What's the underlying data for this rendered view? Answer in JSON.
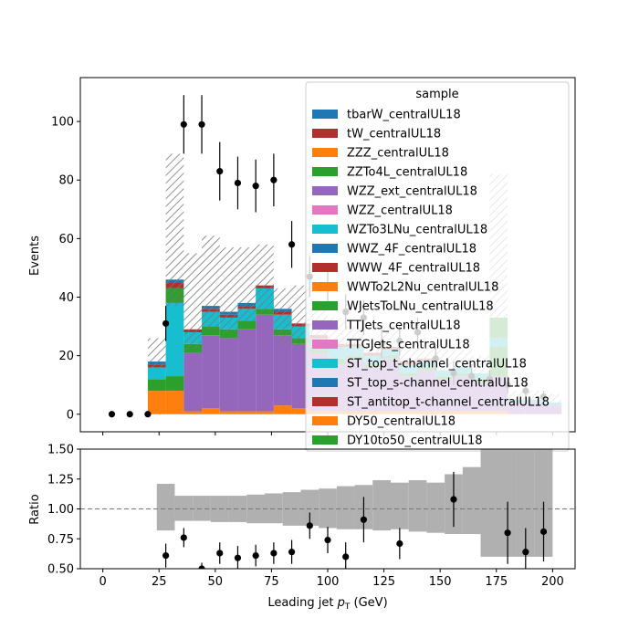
{
  "chart_data": [
    {
      "type": "bar",
      "stacked": true,
      "ylabel": "Events",
      "xlim": [
        -10,
        210
      ],
      "ylim": [
        -6,
        115
      ],
      "yticks": [
        0,
        20,
        40,
        60,
        80,
        100
      ],
      "bins": [
        [
          20,
          28
        ],
        [
          28,
          36
        ],
        [
          36,
          44
        ],
        [
          44,
          52
        ],
        [
          52,
          60
        ],
        [
          60,
          68
        ],
        [
          68,
          76
        ],
        [
          76,
          84
        ],
        [
          84,
          92
        ],
        [
          92,
          100
        ],
        [
          100,
          108
        ],
        [
          108,
          116
        ],
        [
          116,
          124
        ],
        [
          124,
          132
        ],
        [
          132,
          140
        ],
        [
          140,
          148
        ],
        [
          148,
          156
        ],
        [
          156,
          164
        ],
        [
          164,
          172
        ],
        [
          172,
          180
        ],
        [
          180,
          188
        ],
        [
          188,
          196
        ],
        [
          196,
          204
        ]
      ],
      "series": [
        {
          "name": "DY10to50_centralUL18",
          "color": "#2ca02c",
          "values": [
            0,
            0,
            0,
            0,
            0,
            0,
            0,
            0,
            0,
            0,
            0,
            0,
            0,
            0,
            0,
            0,
            0,
            0,
            0,
            0,
            0,
            0,
            0
          ]
        },
        {
          "name": "DY50_centralUL18",
          "color": "#ff7f0e",
          "values": [
            8,
            8,
            1,
            2,
            1,
            1,
            1,
            3,
            2,
            1,
            1,
            1,
            1,
            1,
            1,
            1,
            1,
            1,
            1,
            1,
            0,
            0,
            0
          ]
        },
        {
          "name": "ST_antitop_t-channel_centralUL18",
          "color": "#b1302e",
          "values": [
            0,
            0,
            0,
            0,
            0,
            0,
            0,
            0,
            0,
            0,
            0,
            0,
            0,
            0,
            0,
            0,
            0,
            0,
            0,
            0,
            0,
            0,
            0
          ]
        },
        {
          "name": "ST_top_s-channel_centralUL18",
          "color": "#1f77b4",
          "values": [
            0,
            0,
            0,
            0,
            0,
            0,
            0,
            0,
            0,
            0,
            0,
            0,
            0,
            0,
            0,
            0,
            0,
            0,
            0,
            0,
            0,
            0,
            0
          ]
        },
        {
          "name": "ST_top_t-channel_centralUL18",
          "color": "#17becf",
          "values": [
            0,
            0,
            0,
            0,
            0,
            0,
            0,
            0,
            0,
            0,
            0,
            0,
            0,
            0,
            0,
            0,
            0,
            0,
            0,
            0,
            0,
            0,
            0
          ]
        },
        {
          "name": "TTGJets_centralUL18",
          "color": "#e377c2",
          "values": [
            0,
            0,
            0,
            0,
            0,
            0,
            0,
            0,
            0,
            0,
            0,
            0,
            0,
            0,
            0,
            0,
            0,
            0,
            0,
            0,
            0,
            0,
            0
          ]
        },
        {
          "name": "TTJets_centralUL18",
          "color": "#9467bd",
          "values": [
            0,
            0,
            20,
            25,
            25,
            28,
            33,
            24,
            22,
            20,
            16,
            18,
            15,
            18,
            12,
            14,
            11,
            12,
            10,
            12,
            4,
            4,
            3
          ]
        },
        {
          "name": "WJetsToLNu_centralUL18",
          "color": "#2ca02c",
          "values": [
            4,
            5,
            3,
            3,
            3,
            3,
            2,
            2,
            2,
            2,
            2,
            1,
            1,
            1,
            1,
            1,
            1,
            1,
            1,
            10,
            0,
            0,
            0
          ]
        },
        {
          "name": "WWTo2L2Nu_centralUL18",
          "color": "#ff7f0e",
          "values": [
            0,
            0,
            0,
            0,
            0,
            0,
            0,
            0,
            0,
            0,
            0,
            0,
            0,
            0,
            0,
            0,
            0,
            0,
            0,
            0,
            0,
            0,
            0
          ]
        },
        {
          "name": "WWW_4F_centralUL18",
          "color": "#b1302e",
          "values": [
            0,
            0,
            0,
            0,
            0,
            0,
            0,
            0,
            0,
            0,
            0,
            0,
            0,
            0,
            0,
            0,
            0,
            0,
            0,
            0,
            0,
            0,
            0
          ]
        },
        {
          "name": "WWZ_4F_centralUL18",
          "color": "#1f77b4",
          "values": [
            0,
            0,
            0,
            0,
            0,
            0,
            0,
            0,
            0,
            0,
            0,
            0,
            0,
            0,
            0,
            0,
            0,
            0,
            0,
            0,
            0,
            0,
            0
          ]
        },
        {
          "name": "WZTo3LNu_centralUL18",
          "color": "#17becf",
          "values": [
            4,
            25,
            4,
            5,
            4,
            4,
            7,
            5,
            4,
            3,
            4,
            3,
            3,
            2,
            3,
            2,
            2,
            2,
            2,
            3,
            1,
            1,
            1
          ]
        },
        {
          "name": "WZZ_centralUL18",
          "color": "#e377c2",
          "values": [
            0,
            0,
            0,
            0,
            0,
            0,
            0,
            0,
            0,
            0,
            0,
            0,
            0,
            0,
            0,
            0,
            0,
            0,
            0,
            0,
            0,
            0,
            0
          ]
        },
        {
          "name": "WZZ_ext_centralUL18",
          "color": "#9467bd",
          "values": [
            0,
            0,
            0,
            0,
            0,
            0,
            0,
            0,
            0,
            0,
            0,
            0,
            0,
            0,
            0,
            0,
            0,
            0,
            0,
            0,
            0,
            0,
            0
          ]
        },
        {
          "name": "ZZTo4L_centralUL18",
          "color": "#2ca02c",
          "values": [
            0,
            5,
            0,
            0,
            0,
            0,
            0,
            0,
            0,
            0,
            0,
            0,
            0,
            0,
            0,
            0,
            0,
            0,
            0,
            7,
            0,
            0,
            0
          ]
        },
        {
          "name": "ZZZ_centralUL18",
          "color": "#ff7f0e",
          "values": [
            0,
            0,
            0,
            0,
            0,
            0,
            0,
            0,
            0,
            0,
            0,
            0,
            0,
            0,
            0,
            0,
            0,
            0,
            0,
            0,
            0,
            0,
            0
          ]
        },
        {
          "name": "tW_centralUL18",
          "color": "#b1302e",
          "values": [
            1,
            2,
            1,
            1,
            1,
            1,
            1,
            1,
            1,
            1,
            1,
            1,
            1,
            1,
            1,
            1,
            0,
            0,
            0,
            0,
            0,
            0,
            0
          ]
        },
        {
          "name": "tbarW_centralUL18",
          "color": "#1f77b4",
          "values": [
            1,
            1,
            0,
            1,
            1,
            1,
            0,
            1,
            0,
            0,
            0,
            0,
            0,
            0,
            0,
            0,
            0,
            0,
            0,
            0,
            0,
            0,
            0
          ]
        }
      ],
      "uncertainty_band": {
        "hatch": "////",
        "upper": [
          26,
          89,
          55,
          61,
          57,
          57,
          58,
          43,
          44,
          36,
          33,
          30,
          25,
          30,
          24,
          24,
          22,
          22,
          20,
          82,
          8,
          8,
          7
        ],
        "lower": [
          16,
          37,
          22,
          29,
          28,
          32,
          34,
          24,
          22,
          20,
          18,
          17,
          15,
          14,
          13,
          13,
          12,
          12,
          11,
          12,
          4,
          4,
          3
        ]
      },
      "data_points": {
        "x": [
          4,
          12,
          20,
          28,
          36,
          44,
          52,
          60,
          68,
          76,
          84,
          92,
          100,
          108,
          116,
          124,
          132,
          140,
          148,
          156,
          164,
          172,
          180,
          188,
          196
        ],
        "y": [
          0,
          0,
          0,
          31,
          99,
          99,
          83,
          79,
          78,
          80,
          58,
          47,
          44,
          35,
          33,
          24,
          25,
          28,
          19,
          14,
          13,
          12,
          10,
          8,
          6
        ],
        "yerr": [
          0,
          0,
          0,
          6,
          10,
          10,
          10,
          9,
          9,
          9,
          8,
          7,
          7,
          6,
          6,
          5,
          5,
          5,
          4,
          4,
          4,
          3,
          3,
          3,
          2
        ]
      },
      "legend": {
        "title": "sample",
        "placement": "upper-right"
      }
    },
    {
      "type": "scatter",
      "xlabel": "Leading jet  p_T (GeV)",
      "xlabel_main": "Leading jet  ",
      "xlabel_p": "p",
      "xlabel_sub": "T",
      "xlabel_unit": " (GeV)",
      "ylabel": "Ratio",
      "xlim": [
        -10,
        210
      ],
      "ylim": [
        0.5,
        1.5
      ],
      "xticks": [
        0,
        25,
        50,
        75,
        100,
        125,
        150,
        175,
        200
      ],
      "yticks": [
        0.5,
        0.75,
        1.0,
        1.25,
        1.5
      ],
      "yticklabels": [
        "0.50",
        "0.75",
        "1.00",
        "1.25",
        "1.50"
      ],
      "reference_line": 1.0,
      "band": {
        "bins": [
          [
            24,
            32
          ],
          [
            32,
            40
          ],
          [
            40,
            48
          ],
          [
            48,
            56
          ],
          [
            56,
            64
          ],
          [
            64,
            72
          ],
          [
            72,
            80
          ],
          [
            80,
            88
          ],
          [
            88,
            96
          ],
          [
            96,
            104
          ],
          [
            104,
            112
          ],
          [
            112,
            120
          ],
          [
            120,
            128
          ],
          [
            128,
            136
          ],
          [
            136,
            144
          ],
          [
            144,
            152
          ],
          [
            152,
            160
          ],
          [
            160,
            168
          ],
          [
            168,
            184
          ],
          [
            184,
            192
          ],
          [
            192,
            200
          ]
        ],
        "lower": [
          0.82,
          0.9,
          0.9,
          0.89,
          0.89,
          0.88,
          0.88,
          0.86,
          0.86,
          0.84,
          0.83,
          0.83,
          0.82,
          0.83,
          0.81,
          0.8,
          0.79,
          0.79,
          0.6,
          0.6,
          0.6
        ],
        "upper": [
          1.21,
          1.11,
          1.11,
          1.11,
          1.11,
          1.12,
          1.13,
          1.14,
          1.16,
          1.17,
          1.19,
          1.2,
          1.24,
          1.22,
          1.24,
          1.22,
          1.29,
          1.35,
          1.5,
          1.5,
          1.5
        ]
      },
      "points": {
        "x": [
          28,
          36,
          44,
          52,
          60,
          68,
          76,
          84,
          92,
          100,
          108,
          116,
          132,
          156,
          180,
          188,
          196
        ],
        "y": [
          0.61,
          0.76,
          0.5,
          0.63,
          0.59,
          0.61,
          0.63,
          0.64,
          0.86,
          0.74,
          0.6,
          0.91,
          0.71,
          1.08,
          0.8,
          0.64,
          0.81
        ],
        "yerr": [
          0.1,
          0.08,
          0.05,
          0.09,
          0.1,
          0.09,
          0.09,
          0.1,
          0.11,
          0.11,
          0.12,
          0.19,
          0.13,
          0.23,
          0.26,
          0.2,
          0.25
        ]
      }
    }
  ]
}
